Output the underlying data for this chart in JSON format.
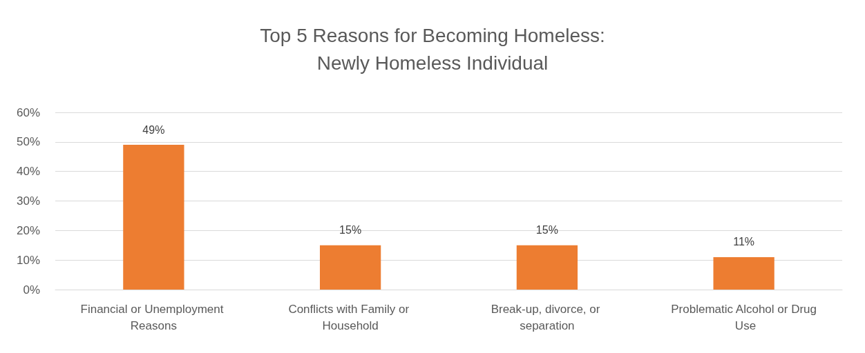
{
  "chart_data": {
    "type": "bar",
    "title": "Top 5 Reasons for Becoming Homeless:\nNewly Homeless Individual",
    "categories": [
      "Financial or Unemployment Reasons",
      "Conflicts with Family or Household",
      "Break-up, divorce, or separation",
      "Problematic Alcohol or Drug Use"
    ],
    "values": [
      49,
      15,
      15,
      11
    ],
    "value_labels": [
      "49%",
      "15%",
      "15%",
      "11%"
    ],
    "color": "#ed7d31",
    "ylim": [
      0,
      60
    ],
    "yticks": [
      {
        "value": 0,
        "label": "0%"
      },
      {
        "value": 10,
        "label": "10%"
      },
      {
        "value": 20,
        "label": "20%"
      },
      {
        "value": 30,
        "label": "30%"
      },
      {
        "value": 40,
        "label": "40%"
      },
      {
        "value": 50,
        "label": "50%"
      },
      {
        "value": 60,
        "label": "60%"
      }
    ],
    "grid": true
  }
}
